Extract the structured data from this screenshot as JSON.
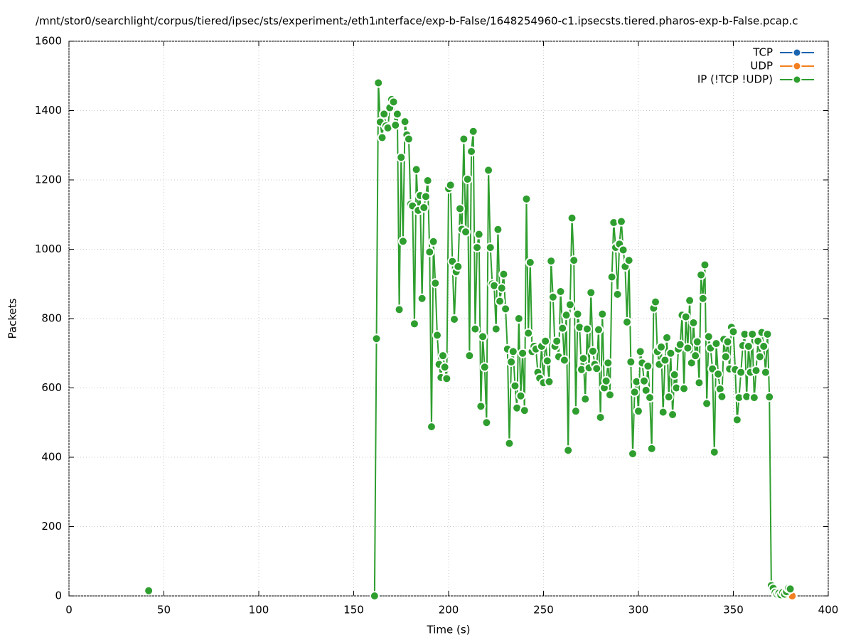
{
  "chart_data": {
    "type": "line",
    "title": "/mnt/stor0/searchlight/corpus/tiered/ipsec/sts/experiment₂/eth1ᵢnterface/exp-b-False/1648254960-c1.ipsecsts.tiered.pharos-exp-b-False.pcap.c",
    "x_label": "Time (s)",
    "y_label": "Packets",
    "xlim": [
      0,
      400
    ],
    "xticks": [
      0,
      50,
      100,
      150,
      200,
      250,
      300,
      350,
      400
    ],
    "ylim": [
      0,
      1600
    ],
    "yticks": [
      0,
      200,
      400,
      600,
      800,
      1000,
      1200,
      1400,
      1600
    ],
    "grid": true,
    "legend": "top-right",
    "series": [
      {
        "name": "TCP",
        "color": "#1a64b0",
        "x": [
          380
        ],
        "values": [
          0
        ]
      },
      {
        "name": "UDP",
        "color": "#f28020",
        "x": [
          381
        ],
        "values": [
          0
        ]
      },
      {
        "name": "IP (!TCP  !UDP)",
        "color": "#2e9e2e",
        "x": [
          42,
          43,
          161,
          162,
          163,
          164,
          165,
          166,
          167,
          168,
          169,
          170,
          171,
          172,
          173,
          174,
          175,
          176,
          177,
          178,
          179,
          180,
          181,
          182,
          183,
          184,
          185,
          186,
          187,
          188,
          189,
          190,
          191,
          192,
          193,
          194,
          195,
          196,
          197,
          198,
          199,
          200,
          201,
          202,
          203,
          204,
          205,
          206,
          207,
          208,
          209,
          210,
          211,
          212,
          213,
          214,
          215,
          216,
          217,
          218,
          219,
          220,
          221,
          222,
          223,
          224,
          225,
          226,
          227,
          228,
          229,
          230,
          231,
          232,
          233,
          234,
          235,
          236,
          237,
          238,
          239,
          240,
          241,
          242,
          243,
          244,
          245,
          246,
          247,
          248,
          249,
          250,
          251,
          252,
          253,
          254,
          255,
          256,
          257,
          258,
          259,
          260,
          261,
          262,
          263,
          264,
          265,
          266,
          267,
          268,
          269,
          270,
          271,
          272,
          273,
          274,
          275,
          276,
          277,
          278,
          279,
          280,
          281,
          282,
          283,
          284,
          285,
          286,
          287,
          288,
          289,
          290,
          291,
          292,
          293,
          294,
          295,
          296,
          297,
          298,
          299,
          300,
          301,
          302,
          303,
          304,
          305,
          306,
          307,
          308,
          309,
          310,
          311,
          312,
          313,
          314,
          315,
          316,
          317,
          318,
          319,
          320,
          321,
          322,
          323,
          324,
          325,
          326,
          327,
          328,
          329,
          330,
          331,
          332,
          333,
          334,
          335,
          336,
          337,
          338,
          339,
          340,
          341,
          342,
          343,
          344,
          345,
          346,
          347,
          348,
          349,
          350,
          351,
          352,
          353,
          354,
          355,
          356,
          357,
          358,
          359,
          360,
          361,
          362,
          363,
          364,
          365,
          366,
          367,
          368,
          369,
          370,
          371,
          372,
          373,
          374,
          375,
          376,
          377,
          378,
          379,
          380
        ],
        "values": [
          15,
          null,
          0,
          742,
          1480,
          1367,
          1322,
          1390,
          1356,
          1350,
          1408,
          1432,
          1425,
          1358,
          1390,
          826,
          1265,
          1023,
          1368,
          1330,
          1318,
          1130,
          1125,
          785,
          1230,
          1112,
          1155,
          858,
          1120,
          1152,
          1198,
          992,
          488,
          1022,
          902,
          752,
          668,
          630,
          693,
          660,
          627,
          1175,
          1185,
          965,
          798,
          935,
          950,
          1117,
          1058,
          1318,
          1050,
          1202,
          693,
          1282,
          1340,
          770,
          1005,
          1043,
          547,
          748,
          660,
          500,
          1228,
          1005,
          900,
          895,
          770,
          1057,
          850,
          888,
          928,
          828,
          712,
          440,
          675,
          705,
          606,
          542,
          800,
          577,
          700,
          535,
          1145,
          758,
          962,
          705,
          720,
          712,
          645,
          628,
          720,
          615,
          735,
          678,
          618,
          966,
          862,
          720,
          735,
          690,
          878,
          772,
          680,
          810,
          420,
          840,
          1090,
          968,
          533,
          813,
          775,
          653,
          685,
          568,
          770,
          658,
          875,
          706,
          668,
          656,
          768,
          515,
          813,
          600,
          620,
          672,
          580,
          920,
          1077,
          1005,
          870,
          1015,
          1080,
          998,
          950,
          790,
          968,
          675,
          410,
          588,
          618,
          533,
          705,
          672,
          620,
          593,
          663,
          572,
          425,
          830,
          848,
          705,
          668,
          718,
          530,
          680,
          745,
          574,
          700,
          523,
          638,
          600,
          712,
          725,
          810,
          598,
          805,
          715,
          852,
          672,
          788,
          693,
          733,
          615,
          926,
          858,
          955,
          555,
          748,
          715,
          655,
          415,
          728,
          640,
          597,
          575,
          740,
          690,
          733,
          655,
          775,
          762,
          653,
          508,
          572,
          645,
          722,
          755,
          575,
          720,
          645,
          755,
          572,
          650,
          735,
          690,
          760,
          720,
          645,
          755,
          574,
          30,
          22,
          10,
          5,
          8,
          3,
          10,
          5,
          12,
          22,
          20
        ]
      }
    ]
  }
}
